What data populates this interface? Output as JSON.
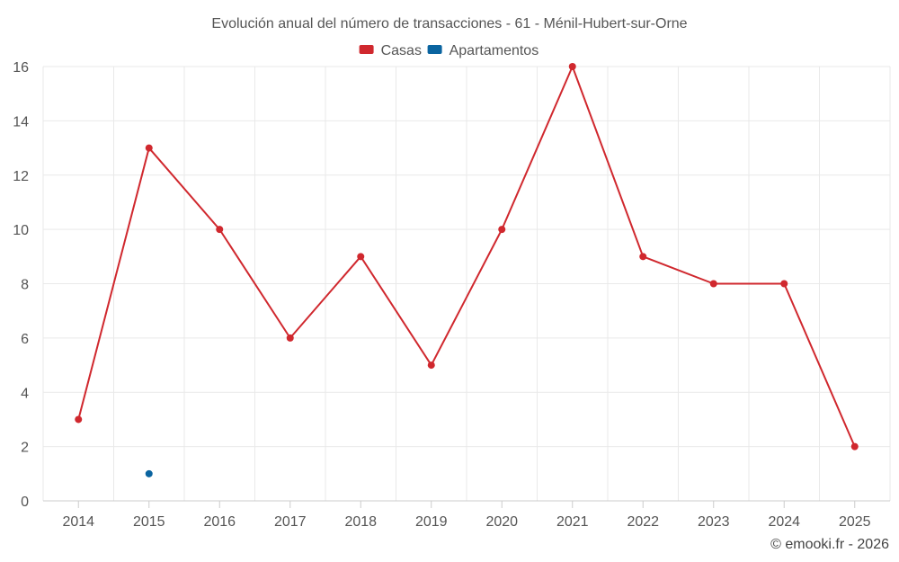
{
  "chart_data": {
    "type": "line",
    "title": "Evolución anual del número de transacciones - 61 - Ménil-Hubert-sur-Orne",
    "xlabel": "",
    "ylabel": "",
    "categories": [
      "2014",
      "2015",
      "2016",
      "2017",
      "2018",
      "2019",
      "2020",
      "2021",
      "2022",
      "2023",
      "2024",
      "2025"
    ],
    "ylim": [
      0,
      16
    ],
    "yticks": [
      0,
      2,
      4,
      6,
      8,
      10,
      12,
      14,
      16
    ],
    "grid": true,
    "legend_position": "top-center",
    "series": [
      {
        "name": "Casas",
        "color": "#d0282e",
        "values": [
          3,
          13,
          10,
          6,
          9,
          5,
          10,
          16,
          9,
          8,
          8,
          2
        ]
      },
      {
        "name": "Apartamentos",
        "color": "#0a64a0",
        "values": [
          null,
          1,
          null,
          null,
          null,
          null,
          null,
          null,
          null,
          null,
          null,
          null
        ]
      }
    ]
  },
  "credit": "© emooki.fr - 2026"
}
